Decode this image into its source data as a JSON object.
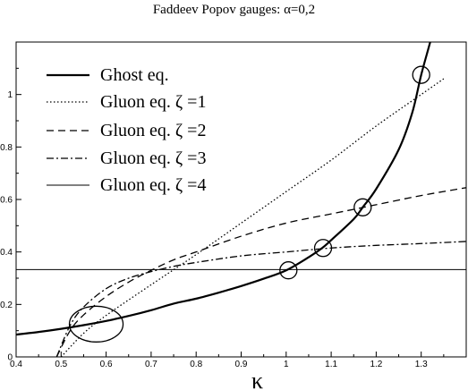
{
  "chart_data": {
    "type": "line",
    "title": "Faddeev Popov gauges: α=0,2",
    "xlabel": "κ",
    "ylabel": "",
    "xlim": [
      0.4,
      1.4
    ],
    "ylim": [
      0.0,
      1.2
    ],
    "xticks": [
      "0.4",
      "0.5",
      "0.6",
      "0.7",
      "0.8",
      "0.9",
      "1",
      "1.1",
      "1.2",
      "1.3"
    ],
    "yticks": [
      "0",
      "0.2",
      "0.4",
      "0.6",
      "0.8",
      "1"
    ],
    "grid": false,
    "legend_position": "top-left",
    "series": [
      {
        "name": "Ghost eq.",
        "style": "solid-thick",
        "x": [
          0.4,
          0.45,
          0.5,
          0.55,
          0.6,
          0.65,
          0.7,
          0.75,
          0.8,
          0.85,
          0.9,
          0.95,
          1.0,
          1.05,
          1.08,
          1.1,
          1.15,
          1.17,
          1.2,
          1.25,
          1.28,
          1.3,
          1.32,
          1.34
        ],
        "y": [
          0.085,
          0.095,
          0.107,
          0.121,
          0.137,
          0.156,
          0.178,
          0.203,
          0.222,
          0.245,
          0.27,
          0.298,
          0.33,
          0.38,
          0.415,
          0.445,
          0.525,
          0.57,
          0.64,
          0.79,
          0.93,
          1.075,
          1.2,
          1.33
        ]
      },
      {
        "name": "Gluon eq. ζ =1",
        "style": "dotted",
        "x": [
          0.5,
          0.55,
          0.6,
          0.7,
          0.8,
          0.9,
          1.0,
          1.1,
          1.2,
          1.3,
          1.35
        ],
        "y": [
          0.0,
          0.09,
          0.158,
          0.275,
          0.39,
          0.51,
          0.63,
          0.75,
          0.88,
          1.0,
          1.06
        ]
      },
      {
        "name": "Gluon eq. ζ =2",
        "style": "dashed",
        "x": [
          0.49,
          0.52,
          0.55,
          0.6,
          0.65,
          0.7,
          0.75,
          0.8,
          0.9,
          1.0,
          1.1,
          1.2,
          1.3,
          1.4
        ],
        "y": [
          0.0,
          0.1,
          0.16,
          0.23,
          0.285,
          0.33,
          0.37,
          0.4,
          0.46,
          0.51,
          0.545,
          0.58,
          0.615,
          0.645
        ]
      },
      {
        "name": "Gluon eq. ζ =3",
        "style": "dash-dot",
        "x": [
          0.49,
          0.52,
          0.55,
          0.6,
          0.65,
          0.7,
          0.75,
          0.8,
          0.9,
          1.0,
          1.1,
          1.2,
          1.3,
          1.4
        ],
        "y": [
          0.0,
          0.12,
          0.19,
          0.26,
          0.3,
          0.325,
          0.345,
          0.36,
          0.385,
          0.4,
          0.415,
          0.425,
          0.432,
          0.44
        ]
      },
      {
        "name": "Gluon eq. ζ =4",
        "style": "thin-solid",
        "x": [
          0.4,
          1.4
        ],
        "y": [
          0.333,
          0.333
        ]
      }
    ],
    "annotations": [
      {
        "type": "circle",
        "x": 1.005,
        "y": 0.33
      },
      {
        "type": "circle",
        "x": 1.082,
        "y": 0.415
      },
      {
        "type": "circle",
        "x": 1.17,
        "y": 0.57
      },
      {
        "type": "circle",
        "x": 1.3,
        "y": 1.075
      },
      {
        "type": "ellipse",
        "x": 0.578,
        "y": 0.125
      }
    ]
  }
}
